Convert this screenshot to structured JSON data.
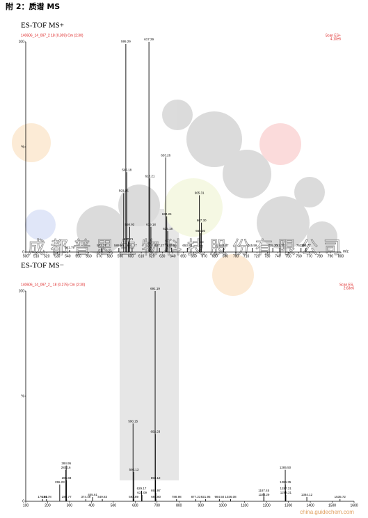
{
  "page_title": "附 2：质谱 MS",
  "watermark": "成都普思生物科技股份有限公司",
  "source_mark": "china.guidechem.com",
  "chart_data": [
    {
      "type": "stem",
      "title": "ES-TOF MS+",
      "subtitle": "140606_14_097_2 18 (0.309) Cm (2:30)",
      "scan": "Scan ES+",
      "intensity": "4.10e6",
      "xlabel": "m/z",
      "x": [
        541.79,
        572.27,
        588.66,
        593.25,
        595.29,
        596.18,
        597.71,
        598.93,
        601.27,
        617.29,
        618.21,
        619.18,
        627.27,
        633.26,
        634.24,
        635.18,
        638.89,
        653.83,
        665.31,
        666.3,
        667.3,
        688.47,
        715.59,
        735.2,
        741.77,
        762.07,
        766.77
      ],
      "x_labels": [
        "541.79",
        "572.27",
        "588.66",
        "593.25",
        "595.29",
        "596.18",
        "597.71",
        "598.93",
        "601.27",
        "617.29",
        "618.21",
        "619.18",
        "627.27",
        "633.26",
        "634.24",
        "635.18",
        "638.89",
        "653.83",
        "665.31",
        "666.30",
        "667.30",
        "688.47",
        "715.59",
        "735.20",
        "741.77",
        "762.07",
        "766.77"
      ],
      "values": [
        1,
        2,
        2,
        28,
        99,
        38,
        5,
        12,
        2,
        100,
        35,
        12,
        2,
        45,
        17,
        10,
        2,
        2,
        27,
        9,
        14,
        2,
        2,
        2,
        2,
        2,
        2
      ],
      "color": "#000000",
      "xlim": [
        500,
        800
      ],
      "xticks": [
        500,
        510,
        520,
        530,
        540,
        550,
        560,
        570,
        580,
        590,
        600,
        610,
        620,
        630,
        640,
        650,
        660,
        670,
        680,
        690,
        700,
        710,
        720,
        730,
        740,
        750,
        760,
        770,
        780,
        790,
        800
      ],
      "ylim": [
        0,
        100
      ],
      "yticks": [
        0,
        {
          "value": 50,
          "label": "%"
        },
        100
      ]
    },
    {
      "type": "stem",
      "title": "ES-TOF MS−",
      "subtitle": "140606_14_097_2_ 18 (0.275) Cm (2:30)",
      "scan": "Scan ES-",
      "intensity": "2.63e6",
      "x": [
        176.85,
        194.78,
        255.23,
        283.16,
        284.95,
        285.83,
        286.77,
        374.49,
        405.61,
        449.83,
        590.15,
        592.89,
        594.13,
        629.17,
        631.09,
        691.19,
        692.23,
        693.12,
        693.97,
        694.8,
        788.98,
        877.23,
        921.95,
        984.5,
        1036.08,
        1187.45,
        1188.29,
        1285.5,
        1286.35,
        1287.31,
        1288.31,
        1384.12,
        1535.72
      ],
      "x_labels": [
        "176.85",
        "194.78",
        "255.23",
        "283.16",
        "284.95",
        "285.83",
        "286.77",
        "374.49",
        "405.61",
        "449.83",
        "590.15",
        "592.89",
        "594.13",
        "629.17",
        "631.09",
        "691.19",
        "692.23",
        "693.12",
        "693.97",
        "694.80",
        "788.98",
        "877.23",
        "921.95",
        "984.50",
        "1036.08",
        "1187.45",
        "1188.29",
        "1285.50",
        "1286.35",
        "1287.31",
        "1288.31",
        "1384.12",
        "1535.72"
      ],
      "values": [
        1,
        1,
        8,
        15,
        17,
        10,
        1,
        1,
        2,
        1,
        37,
        1,
        14,
        5,
        3,
        100,
        32,
        10,
        4,
        1,
        1,
        1,
        1,
        1,
        1,
        4,
        2,
        15,
        8,
        5,
        3,
        2,
        1
      ],
      "color": "#000000",
      "xlim": [
        100,
        1600
      ],
      "xticks": [
        100,
        200,
        300,
        400,
        500,
        600,
        700,
        800,
        900,
        1000,
        1100,
        1200,
        1300,
        1400,
        1500,
        1600
      ],
      "ylim": [
        0,
        100
      ],
      "yticks": [
        0,
        {
          "value": 50,
          "label": "%"
        },
        100
      ]
    }
  ]
}
